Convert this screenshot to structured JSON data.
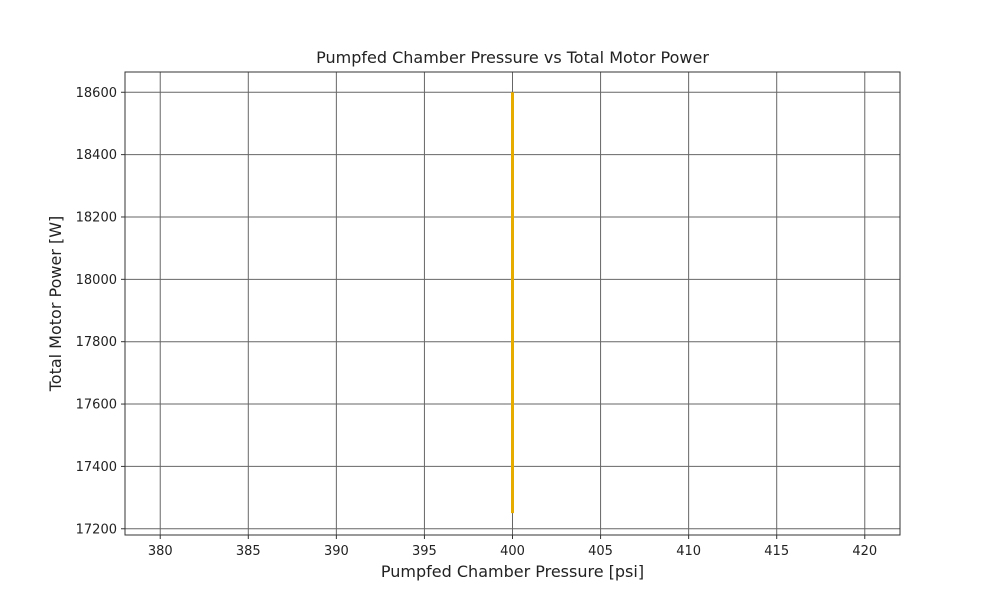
{
  "chart_data": {
    "type": "line",
    "title": "Pumpfed Chamber Pressure vs Total Motor Power",
    "xlabel": "Pumpfed Chamber Pressure [psi]",
    "ylabel": "Total Motor Power [W]",
    "xlim": [
      378,
      422
    ],
    "ylim": [
      17180,
      18665
    ],
    "xticks": [
      380,
      385,
      390,
      395,
      400,
      405,
      410,
      415,
      420
    ],
    "yticks": [
      17200,
      17400,
      17600,
      17800,
      18000,
      18200,
      18400,
      18600
    ],
    "grid": true,
    "line_color": "#e6ac00",
    "series": [
      {
        "x": [
          400,
          400
        ],
        "y": [
          17250,
          18600
        ]
      }
    ]
  }
}
